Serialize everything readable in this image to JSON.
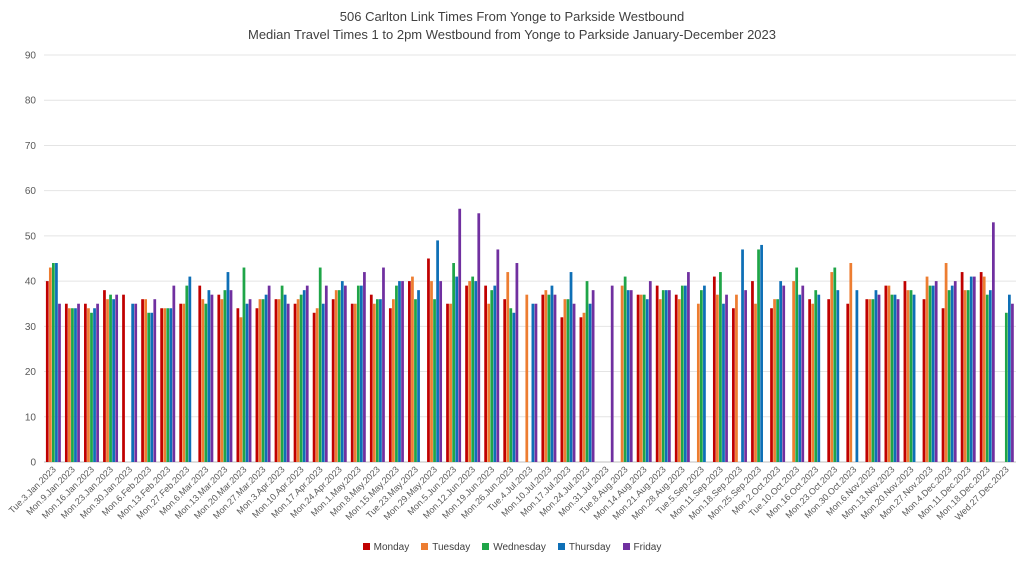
{
  "chart_data": {
    "type": "bar",
    "title": "506 Carlton Link Times From Yonge to Parkside Westbound",
    "subtitle": "Median Travel Times 1 to 2pm Westbound from Yonge to Parkside January-December 2023",
    "xlabel": "",
    "ylabel": "",
    "ylim": [
      0,
      90
    ],
    "yticks": [
      0,
      10,
      20,
      30,
      40,
      50,
      60,
      70,
      80,
      90
    ],
    "grid": true,
    "legend_position": "bottom",
    "categories": [
      "Tue.3.Jan.2023",
      "Mon.9.Jan.2023",
      "Mon.16.Jan.2023",
      "Mon.23.Jan.2023",
      "Mon.30.Jan.2023",
      "Mon.6.Feb.2023",
      "Mon.13.Feb.2023",
      "Mon.27.Feb.2023",
      "Mon.6.Mar.2023",
      "Mon.13.Mar.2023",
      "Mon.20.Mar.2023",
      "Mon.27.Mar.2023",
      "Mon.3.Apr.2023",
      "Mon.10.Apr.2023",
      "Mon.17.Apr.2023",
      "Mon.24.Apr.2023",
      "Mon.1.May.2023",
      "Mon.8.May.2023",
      "Mon.15.May.2023",
      "Tue.23.May.2023",
      "Mon.29.May.2023",
      "Mon.5.Jun.2023",
      "Mon.12.Jun.2023",
      "Mon.19.Jun.2023",
      "Mon.26.Jun.2023",
      "Tue.4.Jul.2023",
      "Mon.10.Jul.2023",
      "Mon.17.Jul.2023",
      "Mon.24.Jul.2023",
      "Mon.31.Jul.2023",
      "Tue.8.Aug.2023",
      "Mon.14.Aug.2023",
      "Mon.21.Aug.2023",
      "Mon.28.Aug.2023",
      "Tue.5.Sep.2023",
      "Mon.11.Sep.2023",
      "Mon.18.Sep.2023",
      "Mon.25.Sep.2023",
      "Mon.2.Oct.2023",
      "Tue.10.Oct.2023",
      "Mon.16.Oct.2023",
      "Mon.23.Oct.2023",
      "Mon.30.Oct.2023",
      "Mon.6.Nov.2023",
      "Mon.13.Nov.2023",
      "Mon.20.Nov.2023",
      "Mon.27.Nov.2023",
      "Mon.4.Dec.2023",
      "Mon.11.Dec.2023",
      "Mon.18.Dec.2023",
      "Wed.27.Dec.2023"
    ],
    "series": [
      {
        "name": "Monday",
        "color": "#c00000",
        "values": [
          40,
          35,
          35,
          38,
          37,
          36,
          34,
          35,
          39,
          37,
          34,
          34,
          36,
          35,
          33,
          36,
          35,
          37,
          34,
          40,
          45,
          35,
          39,
          39,
          36,
          null,
          37,
          32,
          32,
          null,
          null,
          37,
          39,
          37,
          null,
          41,
          34,
          40,
          34,
          null,
          36,
          36,
          35,
          36,
          39,
          40,
          36,
          34,
          42,
          42,
          null
        ]
      },
      {
        "name": "Tuesday",
        "color": "#ed7d31",
        "values": [
          43,
          34,
          34,
          36,
          null,
          36,
          34,
          35,
          36,
          36,
          32,
          36,
          36,
          36,
          34,
          38,
          35,
          35,
          36,
          41,
          40,
          35,
          40,
          35,
          42,
          37,
          38,
          36,
          33,
          null,
          39,
          37,
          36,
          36,
          35,
          37,
          37,
          35,
          36,
          40,
          35,
          42,
          44,
          36,
          39,
          38,
          41,
          44,
          38,
          41,
          null
        ]
      },
      {
        "name": "Wednesday",
        "color": "#1fa548",
        "values": [
          44,
          34,
          33,
          37,
          null,
          33,
          34,
          39,
          35,
          38,
          43,
          36,
          39,
          37,
          43,
          38,
          39,
          36,
          39,
          36,
          36,
          44,
          41,
          38,
          34,
          null,
          37,
          36,
          40,
          null,
          41,
          37,
          38,
          39,
          38,
          42,
          null,
          47,
          36,
          43,
          38,
          43,
          null,
          36,
          37,
          38,
          39,
          38,
          38,
          37,
          33
        ]
      },
      {
        "name": "Thursday",
        "color": "#0e6fb6",
        "values": [
          44,
          34,
          34,
          36,
          35,
          33,
          34,
          41,
          38,
          42,
          35,
          37,
          37,
          38,
          35,
          40,
          39,
          36,
          40,
          38,
          49,
          41,
          40,
          39,
          33,
          35,
          39,
          42,
          35,
          null,
          38,
          36,
          38,
          39,
          39,
          35,
          47,
          48,
          40,
          37,
          37,
          38,
          38,
          38,
          37,
          37,
          39,
          39,
          41,
          38,
          37
        ]
      },
      {
        "name": "Friday",
        "color": "#7030a0",
        "values": [
          35,
          35,
          35,
          37,
          35,
          36,
          39,
          null,
          37,
          38,
          36,
          39,
          35,
          39,
          39,
          39,
          42,
          43,
          40,
          null,
          40,
          56,
          55,
          47,
          44,
          35,
          37,
          35,
          38,
          39,
          38,
          40,
          38,
          42,
          null,
          37,
          38,
          null,
          39,
          39,
          null,
          null,
          null,
          37,
          36,
          null,
          40,
          40,
          41,
          53,
          35
        ]
      }
    ]
  }
}
